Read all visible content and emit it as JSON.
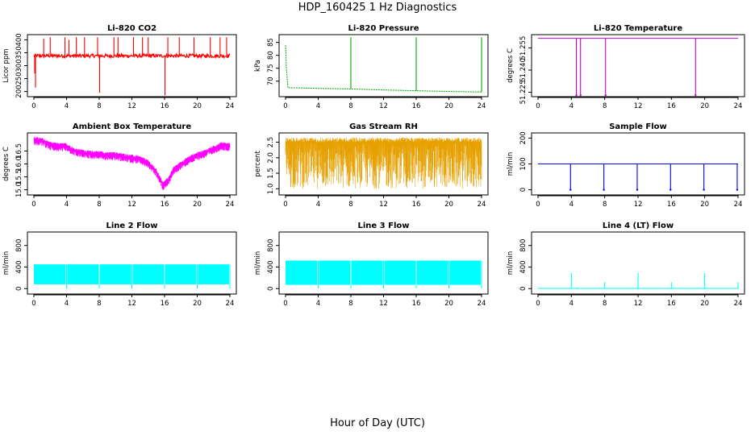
{
  "figure": {
    "title": "HDP_160425  1 Hz Diagnostics",
    "xlabel": "Hour of Day (UTC)"
  },
  "chart_data": [
    {
      "type": "line",
      "title": "Li-820 CO2",
      "ylabel": "Licor ppm",
      "color": "#ff0000",
      "xticks": [
        "0",
        "4",
        "8",
        "12",
        "16",
        "20",
        "24"
      ],
      "yticks": [
        200,
        250,
        300,
        350,
        400
      ],
      "xlim": [
        0,
        24
      ],
      "ylim": [
        180,
        420
      ],
      "baseline": 338,
      "noise": 14,
      "spikes": [
        {
          "x": 0.1,
          "y": 270
        },
        {
          "x": 0.2,
          "y": 215
        },
        {
          "x": 1.2,
          "y": 405
        },
        {
          "x": 2.0,
          "y": 410
        },
        {
          "x": 3.8,
          "y": 410
        },
        {
          "x": 4.3,
          "y": 400
        },
        {
          "x": 5.2,
          "y": 410
        },
        {
          "x": 6.2,
          "y": 410
        },
        {
          "x": 7.8,
          "y": 410
        },
        {
          "x": 8.05,
          "y": 195
        },
        {
          "x": 9.8,
          "y": 410
        },
        {
          "x": 10.3,
          "y": 410
        },
        {
          "x": 12.2,
          "y": 410
        },
        {
          "x": 13.3,
          "y": 410
        },
        {
          "x": 14.0,
          "y": 410
        },
        {
          "x": 16.05,
          "y": 185
        },
        {
          "x": 16.4,
          "y": 410
        },
        {
          "x": 17.8,
          "y": 410
        },
        {
          "x": 19.6,
          "y": 410
        },
        {
          "x": 21.6,
          "y": 410
        },
        {
          "x": 22.8,
          "y": 410
        },
        {
          "x": 23.6,
          "y": 410
        }
      ]
    },
    {
      "type": "line",
      "title": "Li-820 Pressure",
      "ylabel": "kPa",
      "color": "#00aa00",
      "xticks": [
        "0",
        "4",
        "8",
        "12",
        "16",
        "20",
        "24"
      ],
      "yticks": [
        70,
        75,
        80,
        85
      ],
      "xlim": [
        0,
        24
      ],
      "ylim": [
        64,
        88
      ],
      "series": [
        {
          "x": 0,
          "y": 84
        },
        {
          "x": 0.1,
          "y": 75
        },
        {
          "x": 0.3,
          "y": 67.5
        },
        {
          "x": 4,
          "y": 67.2
        },
        {
          "x": 8,
          "y": 67
        },
        {
          "x": 12,
          "y": 66.6
        },
        {
          "x": 16,
          "y": 66.3
        },
        {
          "x": 20,
          "y": 66
        },
        {
          "x": 24,
          "y": 65.8
        }
      ],
      "spikes": [
        {
          "x": 8.0,
          "y": 87
        },
        {
          "x": 16.0,
          "y": 87
        },
        {
          "x": 24.0,
          "y": 87
        }
      ]
    },
    {
      "type": "line",
      "title": "Li-820 Temperature",
      "ylabel": "degrees C",
      "color": "#cc00cc",
      "xticks": [
        "0",
        "4",
        "8",
        "12",
        "16",
        "20",
        "24"
      ],
      "yticks": [
        "51.225",
        "51.240",
        "51.255"
      ],
      "ytick_values": [
        51.225,
        51.24,
        51.255
      ],
      "xlim": [
        0,
        24
      ],
      "ylim": [
        51.222,
        51.264
      ],
      "baseline": 51.2615,
      "dips": [
        {
          "x": 4.6,
          "y": 51.223
        },
        {
          "x": 5.1,
          "y": 51.223
        },
        {
          "x": 8.1,
          "y": 51.223
        },
        {
          "x": 18.9,
          "y": 51.223
        }
      ]
    },
    {
      "type": "line",
      "title": "Ambient Box Temperature",
      "ylabel": "degrees C",
      "color": "#ff00ff",
      "xticks": [
        "0",
        "4",
        "8",
        "12",
        "16",
        "20",
        "24"
      ],
      "yticks": [
        "15.0",
        "15.5",
        "16.0",
        "16.5"
      ],
      "ytick_values": [
        15.0,
        15.5,
        16.0,
        16.5
      ],
      "xlim": [
        0,
        24
      ],
      "ylim": [
        14.8,
        17.2
      ],
      "series": [
        {
          "x": 0,
          "y": 16.95
        },
        {
          "x": 1,
          "y": 16.9
        },
        {
          "x": 2,
          "y": 16.75
        },
        {
          "x": 3,
          "y": 16.7
        },
        {
          "x": 4,
          "y": 16.7
        },
        {
          "x": 5,
          "y": 16.5
        },
        {
          "x": 6,
          "y": 16.45
        },
        {
          "x": 7,
          "y": 16.4
        },
        {
          "x": 8,
          "y": 16.4
        },
        {
          "x": 9,
          "y": 16.35
        },
        {
          "x": 10,
          "y": 16.35
        },
        {
          "x": 11,
          "y": 16.3
        },
        {
          "x": 12,
          "y": 16.25
        },
        {
          "x": 13,
          "y": 16.2
        },
        {
          "x": 14,
          "y": 16.05
        },
        {
          "x": 15,
          "y": 15.7
        },
        {
          "x": 15.8,
          "y": 15.2
        },
        {
          "x": 16.5,
          "y": 15.4
        },
        {
          "x": 17,
          "y": 15.75
        },
        {
          "x": 18,
          "y": 16.0
        },
        {
          "x": 19,
          "y": 16.2
        },
        {
          "x": 20,
          "y": 16.35
        },
        {
          "x": 21,
          "y": 16.45
        },
        {
          "x": 22,
          "y": 16.6
        },
        {
          "x": 23,
          "y": 16.75
        },
        {
          "x": 24,
          "y": 16.7
        }
      ],
      "noise": 0.22
    },
    {
      "type": "line",
      "title": "Gas Stream RH",
      "ylabel": "percent",
      "color": "#e6a000",
      "xticks": [
        "0",
        "4",
        "8",
        "12",
        "16",
        "20",
        "24"
      ],
      "yticks": [
        "1.0",
        "1.5",
        "2.0",
        "2.5"
      ],
      "ytick_values": [
        1.0,
        1.5,
        2.0,
        2.5
      ],
      "xlim": [
        0,
        24
      ],
      "ylim": [
        0.8,
        2.8
      ],
      "band": [
        1.0,
        2.65
      ]
    },
    {
      "type": "line",
      "title": "Sample Flow",
      "ylabel": "ml/min",
      "color": "#0000ff",
      "xticks": [
        "0",
        "4",
        "8",
        "12",
        "16",
        "20",
        "24"
      ],
      "yticks": [
        0,
        100,
        200
      ],
      "xlim": [
        0,
        24
      ],
      "ylim": [
        -20,
        220
      ],
      "baseline": 100,
      "dips": [
        {
          "x": 3.9,
          "y": 0
        },
        {
          "x": 7.9,
          "y": 0
        },
        {
          "x": 11.9,
          "y": 0
        },
        {
          "x": 15.9,
          "y": 0
        },
        {
          "x": 19.9,
          "y": 0
        },
        {
          "x": 23.9,
          "y": 0
        }
      ]
    },
    {
      "type": "area",
      "title": "Line 2 Flow",
      "ylabel": "ml/min",
      "color": "#00ffff",
      "xticks": [
        "0",
        "4",
        "8",
        "12",
        "16",
        "20",
        "24"
      ],
      "yticks": [
        0,
        400,
        800
      ],
      "xlim": [
        0,
        24
      ],
      "ylim": [
        -100,
        1050
      ],
      "band": [
        80,
        450
      ],
      "gaps": [
        4,
        8,
        12,
        16,
        20,
        24
      ]
    },
    {
      "type": "area",
      "title": "Line 3 Flow",
      "ylabel": "ml/min",
      "color": "#00ffff",
      "xticks": [
        "0",
        "4",
        "8",
        "12",
        "16",
        "20",
        "24"
      ],
      "yticks": [
        0,
        400,
        800
      ],
      "xlim": [
        0,
        24
      ],
      "ylim": [
        -100,
        1050
      ],
      "band": [
        70,
        520
      ],
      "gaps": [
        4,
        8,
        12,
        16,
        20,
        24
      ]
    },
    {
      "type": "line",
      "title": "Line 4 (LT) Flow",
      "ylabel": "ml/min",
      "color": "#00ffff",
      "xticks": [
        "0",
        "4",
        "8",
        "12",
        "16",
        "20",
        "24"
      ],
      "yticks": [
        0,
        400,
        800
      ],
      "xlim": [
        0,
        24
      ],
      "ylim": [
        -100,
        1050
      ],
      "baseline": 5,
      "spikes": [
        {
          "x": 4.0,
          "y": 290
        },
        {
          "x": 8.0,
          "y": 120
        },
        {
          "x": 12.0,
          "y": 290
        },
        {
          "x": 16.0,
          "y": 120
        },
        {
          "x": 20.0,
          "y": 290
        },
        {
          "x": 24.0,
          "y": 120
        }
      ]
    }
  ]
}
